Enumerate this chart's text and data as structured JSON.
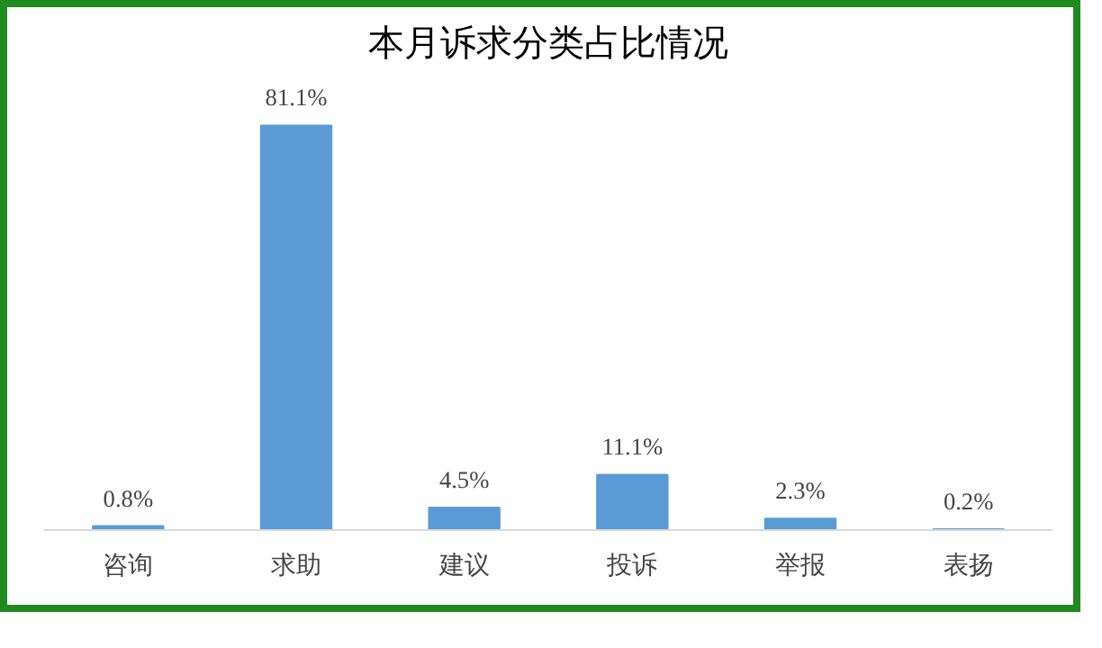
{
  "chart_data": {
    "type": "bar",
    "title": "本月诉求分类占比情况",
    "categories": [
      "咨询",
      "求助",
      "建议",
      "投诉",
      "举报",
      "表扬"
    ],
    "values": [
      0.8,
      81.1,
      4.5,
      11.1,
      2.3,
      0.2
    ],
    "value_labels": [
      "0.8%",
      "81.1%",
      "4.5%",
      "11.1%",
      "2.3%",
      "0.2%"
    ],
    "color": "#5b9bd5"
  }
}
